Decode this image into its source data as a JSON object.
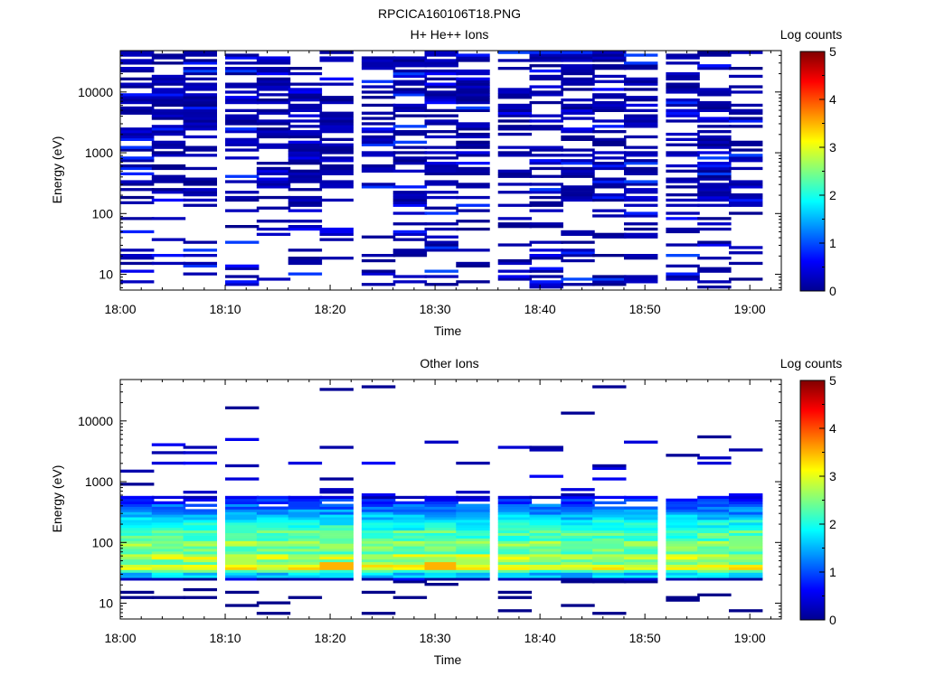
{
  "figure": {
    "title": "RPCICA160106T18.PNG"
  },
  "chart_data": [
    {
      "type": "heatmap",
      "title": "H+ He++ Ions",
      "xlabel": "Time",
      "ylabel": "Energy (eV)",
      "colorbar_label": "Log counts",
      "y_scale": "log",
      "ylim": [
        5.5,
        48000
      ],
      "xlim": [
        "18:00",
        "19:03"
      ],
      "x_ticks": [
        "18:00",
        "18:10",
        "18:20",
        "18:30",
        "18:40",
        "18:50",
        "19:00"
      ],
      "y_ticks": [
        10,
        100,
        1000,
        10000
      ],
      "y_tick_labels": [
        "10",
        "100",
        "1000",
        "10000"
      ],
      "colorbar": {
        "min": 0,
        "max": 5,
        "ticks": [
          "0",
          "1",
          "2",
          "3",
          "4",
          "5"
        ],
        "colormap": "jet"
      },
      "time_bins_start": [
        "18:00",
        "18:03",
        "18:06",
        "18:10",
        "18:13",
        "18:16",
        "18:19",
        "18:23",
        "18:26",
        "18:29",
        "18:32",
        "18:36",
        "18:39",
        "18:42",
        "18:45",
        "18:48",
        "18:52",
        "18:55",
        "18:58"
      ],
      "bin_width_min": 3.2,
      "grid": false,
      "note_values": "Sparse counts mostly at log level 0-1 (dark blue) spread over all energies; white means no counts."
    },
    {
      "type": "heatmap",
      "title": "Other Ions",
      "xlabel": "Time",
      "ylabel": "Energy (eV)",
      "colorbar_label": "Log counts",
      "y_scale": "log",
      "ylim": [
        5.5,
        48000
      ],
      "xlim": [
        "18:00",
        "19:03"
      ],
      "x_ticks": [
        "18:00",
        "18:10",
        "18:20",
        "18:30",
        "18:40",
        "18:50",
        "19:00"
      ],
      "y_ticks": [
        10,
        100,
        1000,
        10000
      ],
      "y_tick_labels": [
        "10",
        "100",
        "1000",
        "10000"
      ],
      "colorbar": {
        "min": 0,
        "max": 5,
        "ticks": [
          "0",
          "1",
          "2",
          "3",
          "4",
          "5"
        ],
        "colormap": "jet"
      },
      "time_bins_start": [
        "18:00",
        "18:03",
        "18:06",
        "18:10",
        "18:13",
        "18:16",
        "18:19",
        "18:23",
        "18:26",
        "18:29",
        "18:32",
        "18:36",
        "18:39",
        "18:42",
        "18:45",
        "18:48",
        "18:52",
        "18:55",
        "18:58"
      ],
      "bin_width_min": 3.2,
      "grid": false,
      "energy_profile": [
        {
          "energy_eV": 24,
          "log_counts": 0.4
        },
        {
          "energy_eV": 28,
          "log_counts": 1.6
        },
        {
          "energy_eV": 33,
          "log_counts": 2.2
        },
        {
          "energy_eV": 38,
          "log_counts": 3.1
        },
        {
          "energy_eV": 45,
          "log_counts": 2.5
        },
        {
          "energy_eV": 55,
          "log_counts": 2.9
        },
        {
          "energy_eV": 65,
          "log_counts": 2.3
        },
        {
          "energy_eV": 78,
          "log_counts": 2.4
        },
        {
          "energy_eV": 95,
          "log_counts": 2.6
        },
        {
          "energy_eV": 115,
          "log_counts": 2.2
        },
        {
          "energy_eV": 140,
          "log_counts": 2.3
        },
        {
          "energy_eV": 170,
          "log_counts": 2.0
        },
        {
          "energy_eV": 205,
          "log_counts": 1.9
        },
        {
          "energy_eV": 250,
          "log_counts": 1.6
        },
        {
          "energy_eV": 300,
          "log_counts": 1.3
        },
        {
          "energy_eV": 360,
          "log_counts": 1.1
        },
        {
          "energy_eV": 440,
          "log_counts": 0.8
        },
        {
          "energy_eV": 530,
          "log_counts": 0.5
        }
      ],
      "peak": {
        "energy_eV": 38,
        "log_counts": 3.5,
        "times": [
          "18:19",
          "18:29"
        ]
      },
      "note_values": "Dense band 24-500 eV peaking near 35-45 eV; sparse counts above 1 keV."
    }
  ]
}
